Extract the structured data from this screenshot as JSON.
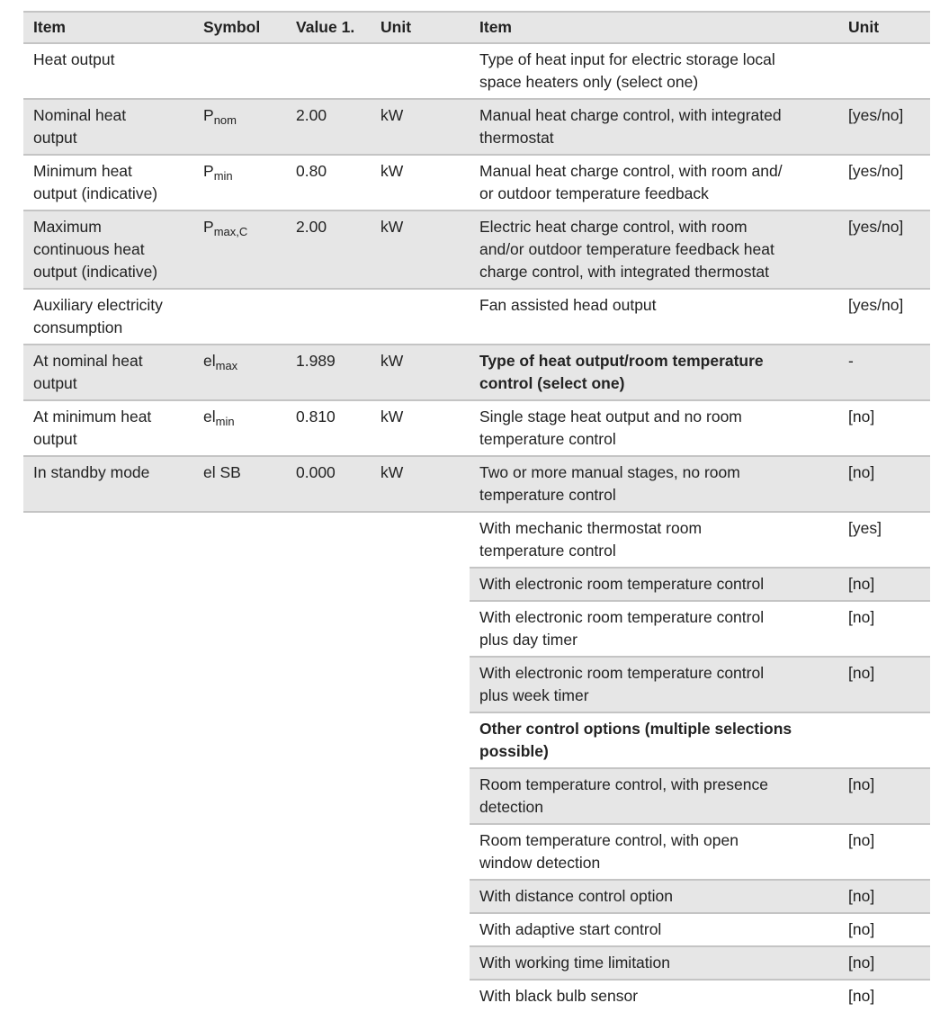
{
  "left_table": {
    "headers": [
      "Item",
      "Symbol",
      "Value 1.",
      "Unit"
    ],
    "rows": [
      {
        "item": [
          "Heat output"
        ]
      },
      {
        "item": [
          "Nominal heat",
          "output"
        ],
        "symbol": "P",
        "symbol_sub": "nom",
        "value": "2.00",
        "unit": "kW"
      },
      {
        "item": [
          "Minimum heat",
          "output (indicative)"
        ],
        "symbol": "P",
        "symbol_sub": "min",
        "value": "0.80",
        "unit": "kW"
      },
      {
        "item": [
          "Maximum",
          "continuous heat",
          "output (indicative)"
        ],
        "symbol": "P",
        "symbol_sub": "max,C",
        "value": "2.00",
        "unit": "kW"
      },
      {
        "item": [
          "Auxiliary electricity",
          "consumption"
        ]
      },
      {
        "item": [
          "At nominal heat",
          "output"
        ],
        "symbol": "el",
        "symbol_sub": "max",
        "value": "1.989",
        "unit": "kW"
      },
      {
        "item": [
          "At minimum heat",
          "output"
        ],
        "symbol": "el",
        "symbol_sub": "min",
        "value": "0.810",
        "unit": "kW"
      },
      {
        "item": [
          "In standby mode"
        ],
        "symbol": "el SB",
        "value": "0.000",
        "unit": "kW"
      }
    ]
  },
  "right_table": {
    "headers": [
      "Item",
      "Unit"
    ],
    "rows": [
      {
        "item": [
          "Type of heat input for electric storage local",
          "space heaters only (select one)"
        ]
      },
      {
        "item": [
          "Manual heat charge control, with integrated",
          "thermostat"
        ],
        "unit": "[yes/no]"
      },
      {
        "item": [
          "Manual heat charge control, with room and/",
          "or outdoor temperature feedback"
        ],
        "unit": "[yes/no]"
      },
      {
        "item": [
          "Electric heat charge control, with room",
          "and/or outdoor temperature feedback heat",
          "charge control, with integrated thermostat"
        ],
        "unit": "[yes/no]"
      },
      {
        "item": [
          "Fan assisted head output"
        ],
        "unit": "[yes/no]"
      },
      {
        "item": [
          "Type of heat output/room temperature",
          "control (select one)"
        ],
        "unit": "-",
        "bold": true
      },
      {
        "item": [
          "Single stage heat output and no room",
          "temperature control"
        ],
        "unit": "[no]"
      },
      {
        "item": [
          "Two or more manual stages, no room",
          "temperature control"
        ],
        "unit": "[no]"
      },
      {
        "item": [
          "With mechanic thermostat  room",
          "temperature control"
        ],
        "unit": "[yes]"
      },
      {
        "item": [
          "With electronic  room temperature control"
        ],
        "unit": "[no]"
      },
      {
        "item": [
          "With electronic  room temperature control",
          "plus day timer"
        ],
        "unit": "[no]"
      },
      {
        "item": [
          "With electronic  room temperature control",
          "plus week timer"
        ],
        "unit": "[no]"
      },
      {
        "item": [
          "Other control options (multiple selections",
          "possible)"
        ],
        "bold": true
      },
      {
        "item": [
          "Room temperature control, with presence",
          "detection"
        ],
        "unit": "[no]"
      },
      {
        "item": [
          "Room temperature control, with open",
          "window detection"
        ],
        "unit": "[no]"
      },
      {
        "item": [
          "With distance control option"
        ],
        "unit": "[no]"
      },
      {
        "item": [
          "With adaptive start control"
        ],
        "unit": "[no]"
      },
      {
        "item": [
          "With working time limitation"
        ],
        "unit": "[no]"
      },
      {
        "item": [
          "With black bulb sensor"
        ],
        "unit": "[no]"
      }
    ]
  }
}
